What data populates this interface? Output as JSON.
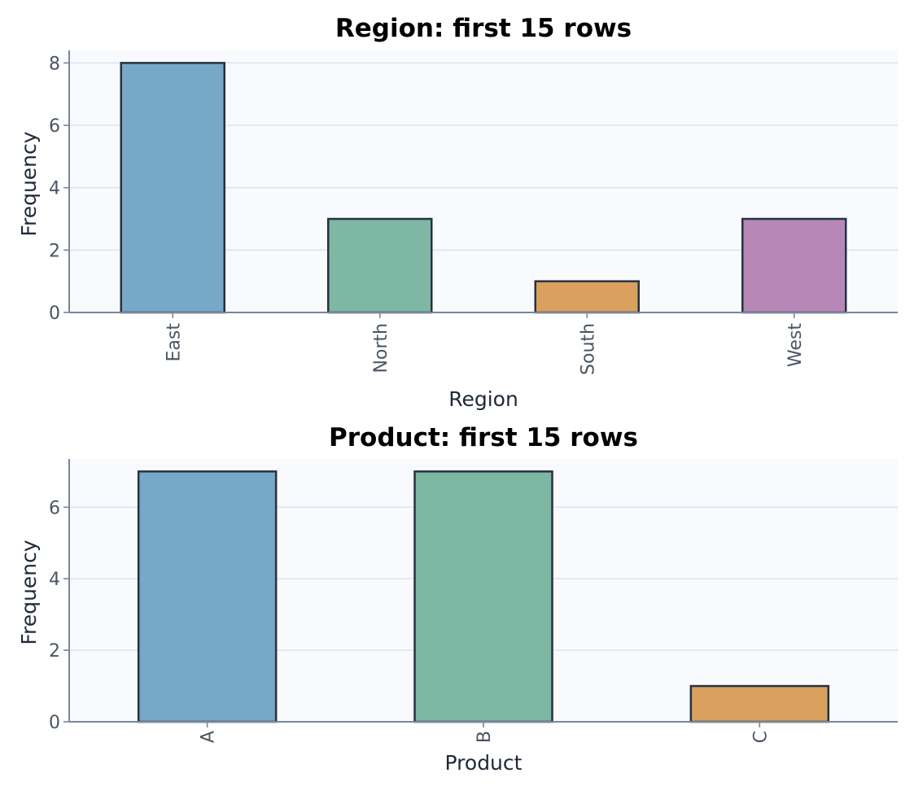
{
  "colors": {
    "plot_background": "#f8fafd",
    "grid": "#dde3ee",
    "axis": "#7a8699",
    "bar_edge": "#263241"
  },
  "chart_data": [
    {
      "type": "bar",
      "title": "Region: first 15 rows",
      "xlabel": "Region",
      "ylabel": "Frequency",
      "categories": [
        "East",
        "North",
        "South",
        "West"
      ],
      "values": [
        8,
        3,
        1,
        3
      ],
      "colors": [
        "#78a8c8",
        "#7fb7a5",
        "#d9a05e",
        "#b788b7"
      ],
      "ylim": [
        0,
        8.4
      ],
      "yticks": [
        0,
        2,
        4,
        6,
        8
      ],
      "grid": true,
      "tick_rotation": -90
    },
    {
      "type": "bar",
      "title": "Product: first 15 rows",
      "xlabel": "Product",
      "ylabel": "Frequency",
      "categories": [
        "A",
        "B",
        "C"
      ],
      "values": [
        7,
        7,
        1
      ],
      "colors": [
        "#78a8c8",
        "#7fb7a5",
        "#d9a05e"
      ],
      "ylim": [
        0,
        7.35
      ],
      "yticks": [
        0,
        2,
        4,
        6
      ],
      "grid": true,
      "tick_rotation": -90
    }
  ]
}
